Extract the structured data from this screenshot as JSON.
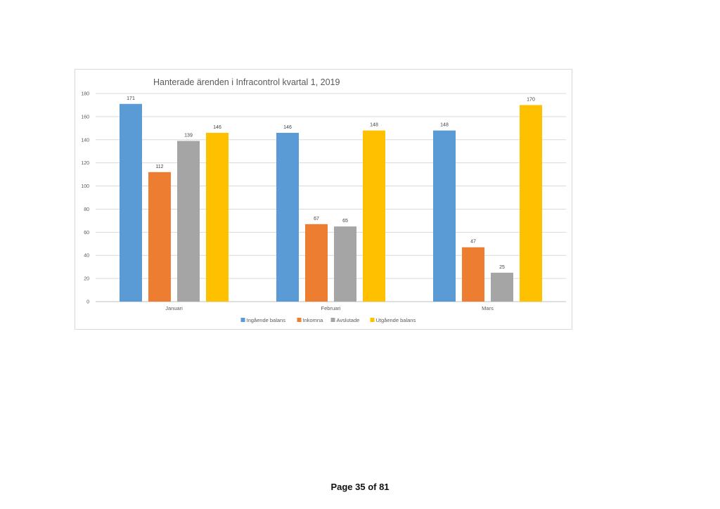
{
  "footer": {
    "page_label": "Page 35 of 81"
  },
  "chart_data": {
    "type": "bar",
    "title": "Hanterade ärenden i Infracontrol kvartal 1, 2019",
    "xlabel": "",
    "ylabel": "",
    "categories": [
      "Januari",
      "Februari",
      "Mars"
    ],
    "series": [
      {
        "name": "Ingående balans",
        "color": "#5b9bd5",
        "values": [
          171,
          146,
          148
        ]
      },
      {
        "name": "Inkomna",
        "color": "#ed7d31",
        "values": [
          112,
          67,
          47
        ]
      },
      {
        "name": "Avslutade",
        "color": "#a5a5a5",
        "values": [
          139,
          65,
          25
        ]
      },
      {
        "name": "Utgående balans",
        "color": "#ffc000",
        "values": [
          146,
          148,
          170
        ]
      }
    ],
    "ylim": [
      0,
      180
    ],
    "yticks": [
      0,
      20,
      40,
      60,
      80,
      100,
      120,
      140,
      160,
      180
    ],
    "grid": true,
    "data_labels": true,
    "legend_position": "bottom"
  }
}
